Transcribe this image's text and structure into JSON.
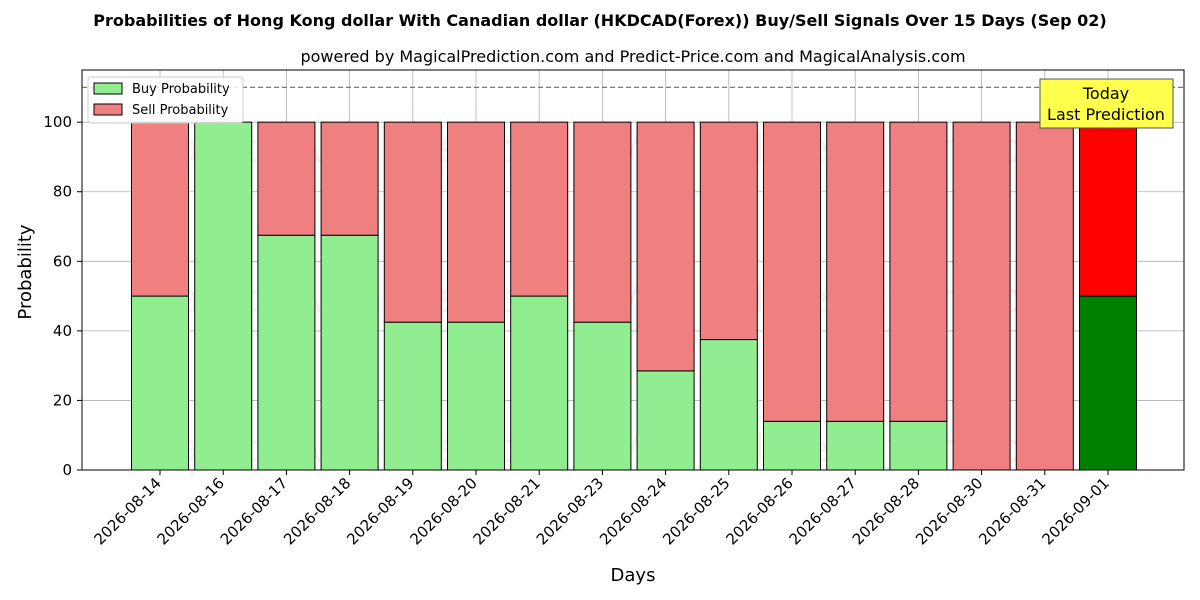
{
  "chart_data": {
    "type": "bar",
    "stacked": true,
    "title": "Probabilities of Hong Kong dollar With Canadian dollar (HKDCAD(Forex)) Buy/Sell Signals Over 15 Days (Sep 02)",
    "subtitle": "powered by MagicalPrediction.com and Predict-Price.com and MagicalAnalysis.com",
    "xlabel": "Days",
    "ylabel": "Probability",
    "ylim": [
      0,
      115
    ],
    "yticks": [
      0,
      20,
      40,
      60,
      80,
      100
    ],
    "reference_line": 110,
    "grid": true,
    "legend_position": "top-left",
    "categories": [
      "2026-08-14",
      "2026-08-16",
      "2026-08-17",
      "2026-08-18",
      "2026-08-19",
      "2026-08-20",
      "2026-08-21",
      "2026-08-23",
      "2026-08-24",
      "2026-08-25",
      "2026-08-26",
      "2026-08-27",
      "2026-08-28",
      "2026-08-30",
      "2026-08-31",
      "2026-09-01"
    ],
    "series": [
      {
        "name": "Buy Probability",
        "color": "#90ee90",
        "highlight_color": "#008000",
        "values": [
          50,
          100,
          67.5,
          67.5,
          42.5,
          42.5,
          50,
          42.5,
          28.5,
          37.5,
          14,
          14,
          14,
          0,
          0,
          50
        ]
      },
      {
        "name": "Sell Probability",
        "color": "#f08080",
        "highlight_color": "#ff0000",
        "values": [
          50,
          0,
          32.5,
          32.5,
          57.5,
          57.5,
          50,
          57.5,
          71.5,
          62.5,
          86,
          86,
          86,
          100,
          100,
          50
        ]
      }
    ],
    "annotation": {
      "lines": [
        "Today",
        "Last Prediction"
      ],
      "category": "2026-09-01",
      "color": "#ffff4d"
    },
    "watermarks": [
      "MagicalAnalysis.com",
      "MagicalPrediction.com"
    ]
  }
}
